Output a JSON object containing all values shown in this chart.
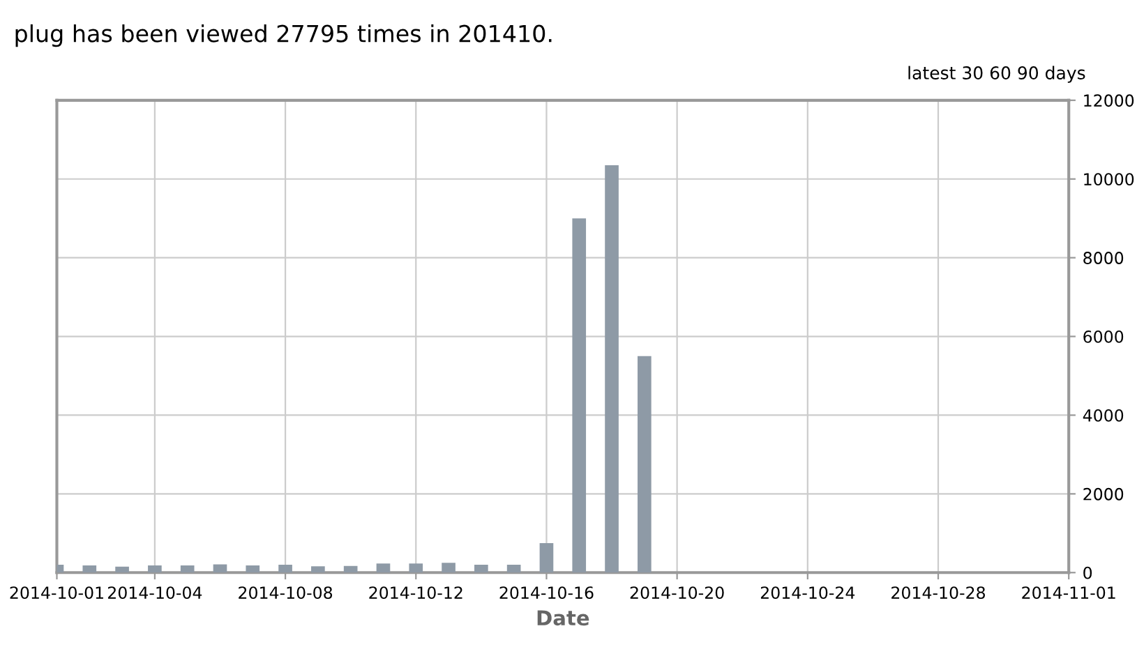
{
  "chart_data": {
    "type": "bar",
    "title": "plug has been viewed 27795 times in 201410.",
    "annotations": [
      "latest 30 60 90 days"
    ],
    "xlabel": "Date",
    "x": [
      "2014-10-01",
      "2014-10-02",
      "2014-10-03",
      "2014-10-04",
      "2014-10-05",
      "2014-10-06",
      "2014-10-07",
      "2014-10-08",
      "2014-10-09",
      "2014-10-10",
      "2014-10-11",
      "2014-10-12",
      "2014-10-13",
      "2014-10-14",
      "2014-10-15",
      "2014-10-16",
      "2014-10-17",
      "2014-10-18",
      "2014-10-19"
    ],
    "values": [
      200,
      180,
      150,
      180,
      180,
      210,
      180,
      200,
      160,
      170,
      230,
      230,
      250,
      200,
      200,
      750,
      9000,
      10350,
      5500
    ],
    "color": "#8e9aa6",
    "xlim": [
      "2014-10-01",
      "2014-11-01"
    ],
    "xticks": [
      "2014-10-01",
      "2014-10-04",
      "2014-10-08",
      "2014-10-12",
      "2014-10-16",
      "2014-10-20",
      "2014-10-24",
      "2014-10-28",
      "2014-11-01"
    ],
    "ylim": [
      0,
      12000
    ],
    "yticks": [
      0,
      2000,
      4000,
      6000,
      8000,
      10000,
      12000
    ],
    "grid": true
  }
}
